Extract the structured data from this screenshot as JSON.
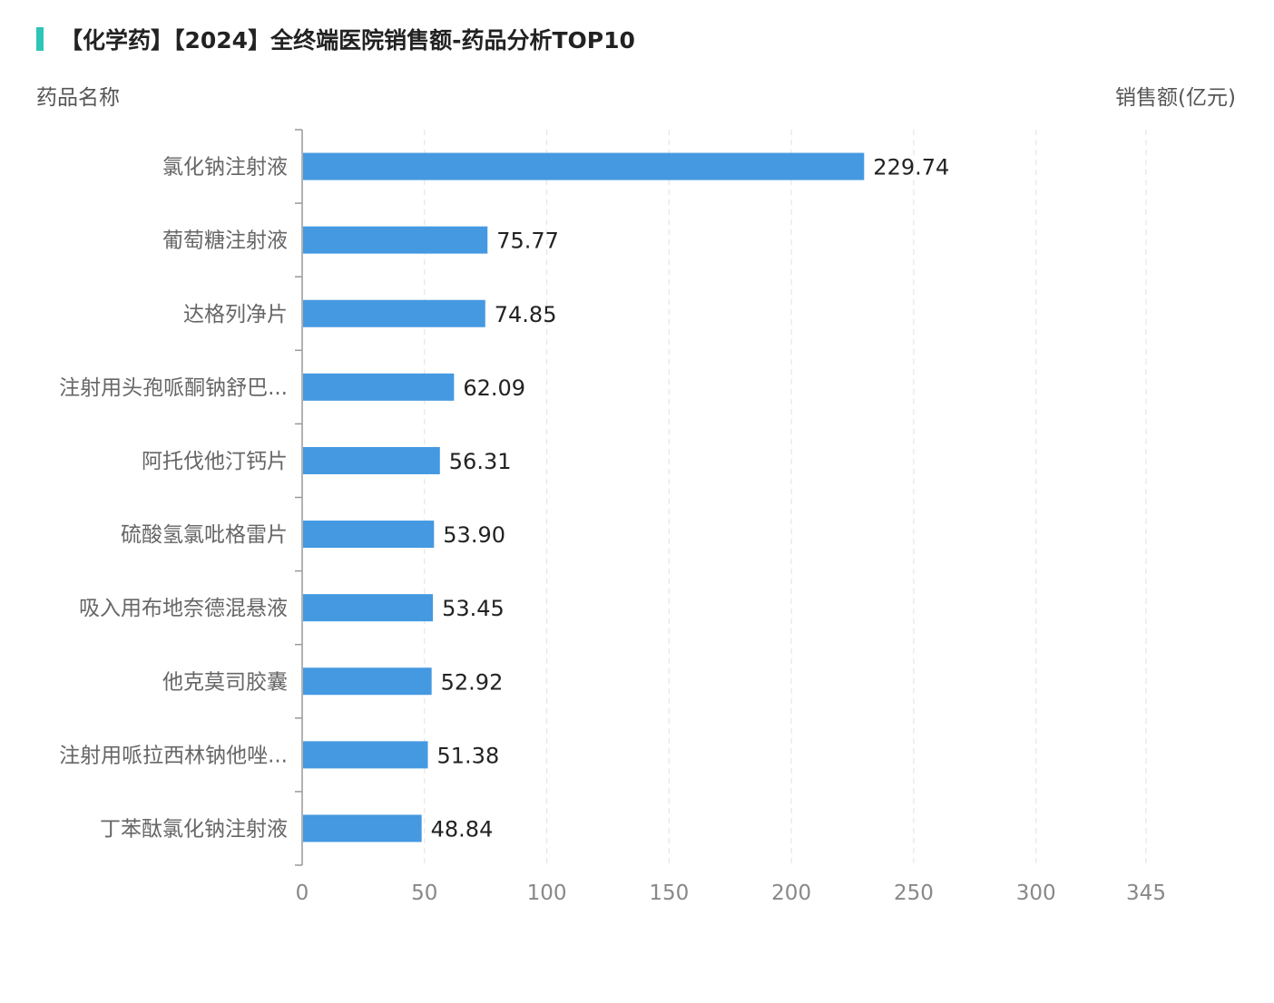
{
  "chart_data": {
    "type": "bar",
    "orientation": "horizontal",
    "title": "【化学药】【2024】全终端医院销售额-药品分析TOP10",
    "ylabel": "药品名称",
    "xlabel": "销售额(亿元)",
    "categories": [
      "氯化钠注射液",
      "葡萄糖注射液",
      "达格列净片",
      "注射用头孢哌酮钠舒巴...",
      "阿托伐他汀钙片",
      "硫酸氢氯吡格雷片",
      "吸入用布地奈德混悬液",
      "他克莫司胶囊",
      "注射用哌拉西林钠他唑...",
      "丁苯酞氯化钠注射液"
    ],
    "values": [
      229.74,
      75.77,
      74.85,
      62.09,
      56.31,
      53.9,
      53.45,
      52.92,
      51.38,
      48.84
    ],
    "value_labels": [
      "229.74",
      "75.77",
      "74.85",
      "62.09",
      "56.31",
      "53.90",
      "53.45",
      "52.92",
      "51.38",
      "48.84"
    ],
    "xticks": [
      0,
      50,
      100,
      150,
      200,
      250,
      300,
      345
    ],
    "xlim": [
      0,
      345
    ],
    "grid": true,
    "bar_color": "#4499e1",
    "accent_color": "#2ec4b6"
  }
}
